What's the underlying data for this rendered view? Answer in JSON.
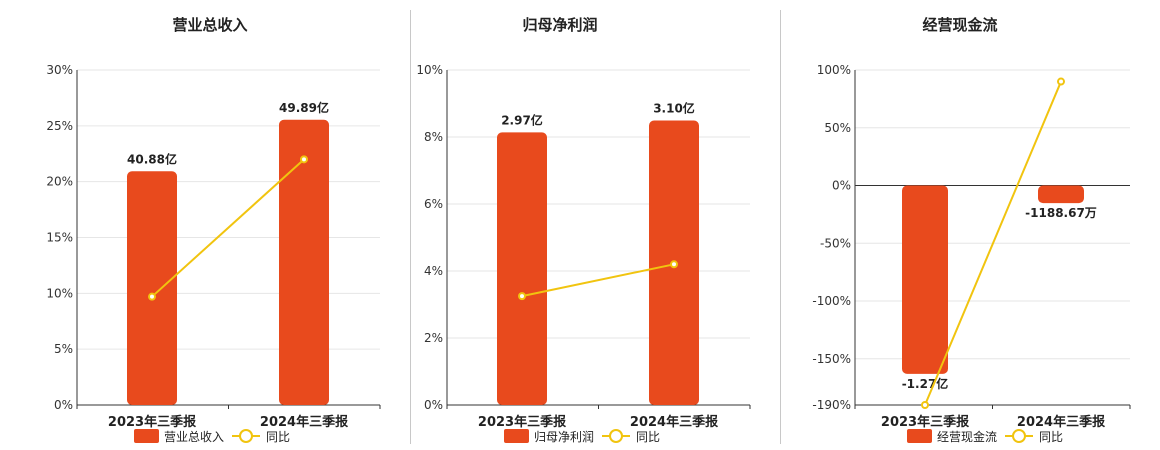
{
  "colors": {
    "bar": "#E84A1D",
    "line": "#F1C40F",
    "grid": "#e6e6e6",
    "axis": "#333333"
  },
  "chart_data": [
    {
      "type": "bar",
      "title": "营业总收入",
      "categories": [
        "2023年三季报",
        "2024年三季报"
      ],
      "bar_values": [
        40.88,
        49.89
      ],
      "bar_labels": [
        "40.88亿",
        "49.89亿"
      ],
      "line_values": [
        9.7,
        22.0
      ],
      "yticks": [
        "30%",
        "25%",
        "20%",
        "15%",
        "10%",
        "5%",
        "0%"
      ],
      "ylim": [
        0,
        30
      ],
      "bar_scale_max": 58.6,
      "legend": [
        "营业总收入",
        "同比"
      ]
    },
    {
      "type": "bar",
      "title": "归母净利润",
      "categories": [
        "2023年三季报",
        "2024年三季报"
      ],
      "bar_values": [
        2.97,
        3.1
      ],
      "bar_labels": [
        "2.97亿",
        "3.10亿"
      ],
      "line_values": [
        3.25,
        4.2
      ],
      "yticks": [
        "10%",
        "8%",
        "6%",
        "4%",
        "2%",
        "0%"
      ],
      "ylim": [
        0,
        10
      ],
      "bar_scale_max": 3.65,
      "legend": [
        "归母净利润",
        "同比"
      ]
    },
    {
      "type": "bar",
      "title": "经营现金流",
      "categories": [
        "2023年三季报",
        "2024年三季报"
      ],
      "bar_values": [
        -1.27,
        -0.118867
      ],
      "bar_labels": [
        "-1.27亿",
        "-1188.67万"
      ],
      "line_values": [
        -190,
        90
      ],
      "yticks": [
        "100%",
        "50%",
        "0%",
        "-50%",
        "-100%",
        "-150%",
        "-190%"
      ],
      "ytick_values": [
        100,
        50,
        0,
        -50,
        -100,
        -150,
        -190
      ],
      "ylim": [
        -190,
        100
      ],
      "bar_scale_min": -1.48,
      "legend": [
        "经营现金流",
        "同比"
      ]
    }
  ]
}
